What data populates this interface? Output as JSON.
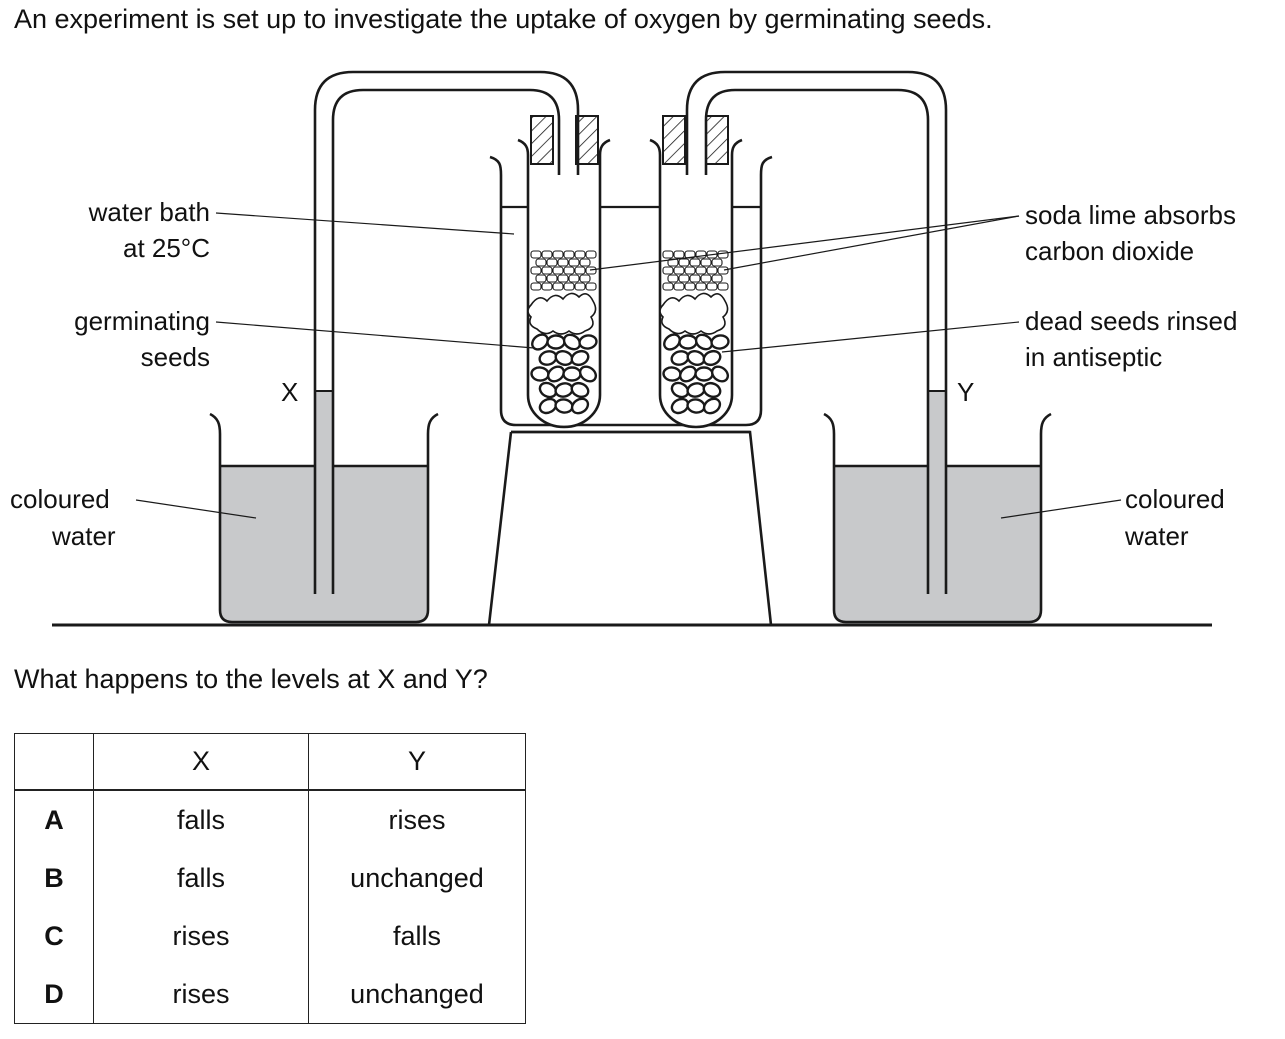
{
  "intro": "An experiment is set up to investigate the uptake of oxygen by germinating seeds.",
  "question": "What happens to the levels at X and Y?",
  "diagram": {
    "labels": {
      "water_bath_1": "water bath",
      "water_bath_2": "at 25°C",
      "germinating_1": "germinating",
      "germinating_2": "seeds",
      "coloured_left_1": "coloured",
      "coloured_left_2": "water",
      "soda_lime_1": "soda lime absorbs",
      "soda_lime_2": "carbon dioxide",
      "dead_seeds_1": "dead seeds rinsed",
      "dead_seeds_2": "in antiseptic",
      "coloured_right_1": "coloured",
      "coloured_right_2": "water",
      "x": "X",
      "y": "Y"
    },
    "colors": {
      "water": "#c8c9cb",
      "line": "#1a1a1a"
    }
  },
  "table": {
    "headers": [
      "",
      "X",
      "Y"
    ],
    "rows": [
      {
        "option": "A",
        "x": "falls",
        "y": "rises"
      },
      {
        "option": "B",
        "x": "falls",
        "y": "unchanged"
      },
      {
        "option": "C",
        "x": "rises",
        "y": "falls"
      },
      {
        "option": "D",
        "x": "rises",
        "y": "unchanged"
      }
    ]
  }
}
